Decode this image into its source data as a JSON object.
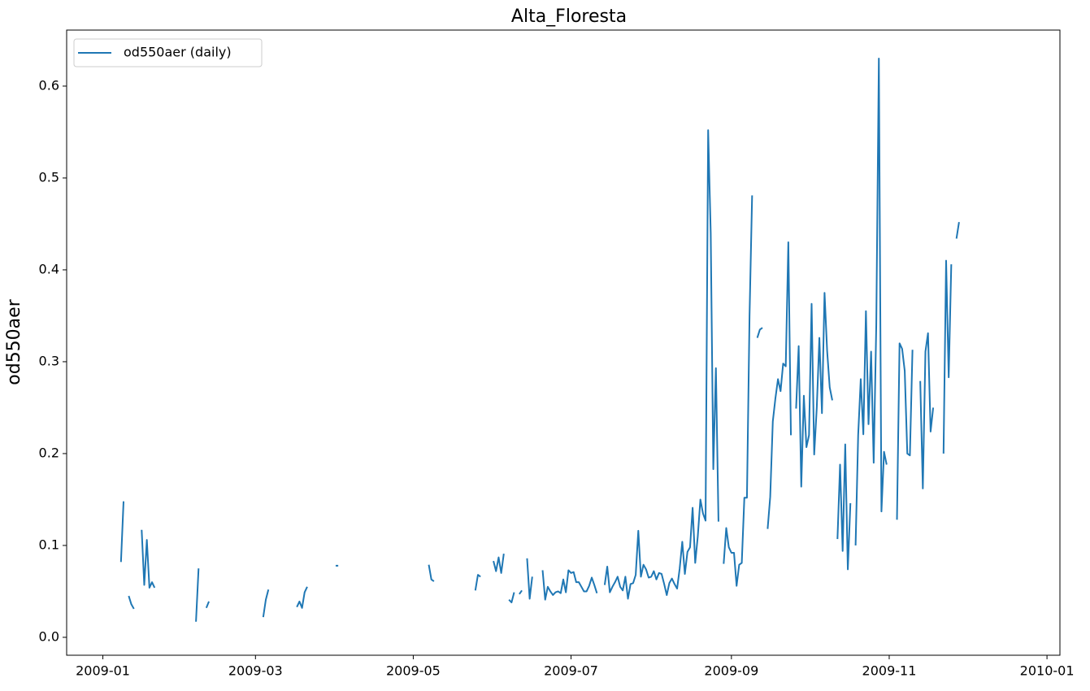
{
  "chart_data": {
    "type": "line",
    "title": "Alta_Floresta",
    "y_label": "od550aer",
    "x": [
      0,
      1,
      2,
      3,
      4,
      5,
      6,
      7,
      8,
      9,
      10,
      11,
      12,
      13,
      14,
      15,
      16,
      17,
      18,
      19,
      20,
      21,
      22,
      23,
      24,
      25,
      26,
      27,
      28,
      29,
      30,
      31,
      32,
      33,
      34,
      35,
      36,
      37,
      38,
      39,
      40,
      41,
      42,
      43,
      44,
      45,
      46,
      47,
      48,
      49,
      50,
      51,
      52,
      53,
      54,
      55,
      56,
      57,
      58,
      59,
      60,
      61,
      62,
      63,
      64,
      65,
      66,
      67,
      68,
      69,
      70,
      71,
      72,
      73,
      74,
      75,
      76,
      77,
      78,
      79,
      80,
      81,
      82,
      83,
      84,
      85,
      86,
      87,
      88,
      89,
      90,
      91,
      92,
      93,
      94,
      95,
      96,
      97,
      98,
      99,
      100,
      101,
      102,
      103,
      104,
      105,
      106,
      107,
      108,
      109,
      110,
      111,
      112,
      113,
      114,
      115,
      116,
      117,
      118,
      119,
      120,
      121,
      122,
      123,
      124,
      125,
      126,
      127,
      128,
      129,
      130,
      131,
      132,
      133,
      134,
      135,
      136,
      137,
      138,
      139,
      140,
      141,
      142,
      143,
      144,
      145,
      146,
      147,
      148,
      149,
      150,
      151,
      152,
      153,
      154,
      155,
      156,
      157,
      158,
      159,
      160,
      161,
      162,
      163,
      164,
      165,
      166,
      167,
      168,
      169,
      170,
      171,
      172,
      173,
      174,
      175,
      176,
      177,
      178,
      179,
      180,
      181,
      182,
      183,
      184,
      185,
      186,
      187,
      188,
      189,
      190,
      191,
      192,
      193,
      194,
      195,
      196,
      197,
      198,
      199,
      200,
      201,
      202,
      203,
      204,
      205,
      206,
      207,
      208,
      209,
      210,
      211,
      212,
      213,
      214,
      215,
      216,
      217,
      218,
      219,
      220,
      221,
      222,
      223,
      224,
      225,
      226,
      227,
      228,
      229,
      230,
      231,
      232,
      233,
      234,
      235,
      236,
      237,
      238,
      239,
      240,
      241,
      242,
      243,
      244,
      245,
      246,
      247,
      248,
      249,
      250,
      251,
      252,
      253,
      254,
      255,
      256,
      257,
      258,
      259,
      260,
      261,
      262,
      263,
      264,
      265,
      266,
      267,
      268,
      269,
      270,
      271,
      272,
      273,
      274,
      275,
      276,
      277,
      278,
      279,
      280,
      281,
      282,
      283,
      284,
      285,
      286,
      287,
      288,
      289,
      290,
      291,
      292,
      293,
      294,
      295,
      296,
      297,
      298,
      299,
      300,
      301,
      302,
      303,
      304,
      305,
      306,
      307,
      308,
      309,
      310,
      311,
      312,
      313,
      314,
      315,
      316,
      317,
      318,
      319,
      320,
      321,
      322,
      323,
      324,
      325,
      326,
      327,
      328,
      329,
      330,
      331
    ],
    "series": [
      {
        "name": "od550aer (daily)",
        "color": "#1f77b4",
        "values": [
          null,
          null,
          null,
          null,
          null,
          null,
          null,
          0.082,
          0.148,
          null,
          0.045,
          0.036,
          0.031,
          null,
          null,
          0.117,
          0.057,
          0.106,
          0.054,
          0.06,
          0.054,
          null,
          null,
          null,
          null,
          null,
          null,
          null,
          null,
          null,
          null,
          null,
          null,
          null,
          null,
          null,
          0.017,
          0.075,
          null,
          null,
          0.032,
          0.039,
          null,
          null,
          null,
          null,
          null,
          null,
          null,
          null,
          null,
          null,
          null,
          null,
          null,
          null,
          null,
          null,
          null,
          null,
          null,
          null,
          0.022,
          0.041,
          0.052,
          null,
          null,
          null,
          null,
          null,
          null,
          null,
          null,
          null,
          null,
          0.033,
          0.039,
          0.032,
          0.049,
          0.055,
          null,
          null,
          null,
          null,
          null,
          null,
          null,
          null,
          null,
          null,
          0.078,
          0.078,
          null,
          null,
          null,
          null,
          null,
          null,
          null,
          null,
          null,
          null,
          null,
          null,
          null,
          null,
          null,
          null,
          null,
          null,
          null,
          null,
          null,
          null,
          null,
          null,
          null,
          null,
          null,
          null,
          null,
          null,
          null,
          null,
          null,
          null,
          0.079,
          0.063,
          0.061,
          null,
          null,
          null,
          null,
          null,
          null,
          null,
          null,
          null,
          null,
          null,
          null,
          null,
          null,
          null,
          0.051,
          0.068,
          0.066,
          null,
          null,
          null,
          null,
          0.083,
          0.072,
          0.087,
          0.07,
          0.091,
          null,
          0.041,
          0.038,
          0.049,
          null,
          0.047,
          0.051,
          null,
          0.086,
          0.042,
          0.066,
          null,
          null,
          null,
          0.073,
          0.041,
          0.055,
          0.05,
          0.046,
          0.049,
          0.05,
          0.048,
          0.063,
          0.049,
          0.073,
          0.07,
          0.071,
          0.06,
          0.06,
          0.055,
          0.05,
          0.05,
          0.056,
          0.065,
          0.057,
          0.048,
          null,
          null,
          0.057,
          0.077,
          0.049,
          0.055,
          0.06,
          0.066,
          0.055,
          0.051,
          0.066,
          0.042,
          0.058,
          0.059,
          0.068,
          0.116,
          0.066,
          0.079,
          0.074,
          0.065,
          0.066,
          0.072,
          0.063,
          0.07,
          0.069,
          0.058,
          0.046,
          0.059,
          0.064,
          0.058,
          0.053,
          0.075,
          0.104,
          0.069,
          0.093,
          0.098,
          0.141,
          0.081,
          0.11,
          0.15,
          0.135,
          0.127,
          0.552,
          0.44,
          0.183,
          0.293,
          0.126,
          null,
          0.08,
          0.119,
          0.098,
          0.092,
          0.092,
          0.056,
          0.079,
          0.081,
          0.152,
          0.152,
          0.35,
          0.481,
          null,
          0.326,
          0.335,
          0.337,
          null,
          0.118,
          0.153,
          0.235,
          0.26,
          0.281,
          0.268,
          0.298,
          0.295,
          0.43,
          0.22,
          null,
          0.249,
          0.317,
          0.164,
          0.263,
          0.207,
          0.22,
          0.363,
          0.199,
          0.25,
          0.326,
          0.244,
          0.375,
          0.312,
          0.272,
          0.258,
          null,
          0.107,
          0.188,
          0.094,
          0.21,
          0.074,
          0.146,
          null,
          0.1,
          0.22,
          0.281,
          0.221,
          0.355,
          0.232,
          0.311,
          0.19,
          0.34,
          0.63,
          0.137,
          0.202,
          0.188,
          null,
          null,
          null,
          0.128,
          0.32,
          0.314,
          0.29,
          0.2,
          0.198,
          0.313,
          null,
          null,
          0.279,
          0.162,
          0.311,
          0.331,
          0.224,
          0.25,
          null,
          null,
          null,
          0.2,
          0.41,
          0.283,
          0.406,
          null,
          0.434,
          0.452
        ]
      }
    ],
    "xlim": [
      -14,
      370
    ],
    "xticks": [
      {
        "value": 0,
        "label": "2009-01"
      },
      {
        "value": 59,
        "label": "2009-03"
      },
      {
        "value": 120,
        "label": "2009-05"
      },
      {
        "value": 181,
        "label": "2009-07"
      },
      {
        "value": 243,
        "label": "2009-09"
      },
      {
        "value": 304,
        "label": "2009-11"
      },
      {
        "value": 365,
        "label": "2010-01"
      }
    ],
    "ylim": [
      -0.0195,
      0.661
    ],
    "yticks": [
      {
        "value": 0,
        "label": "0.0"
      },
      0.1,
      0.2,
      0.3,
      0.4,
      0.5,
      0.6
    ],
    "legend": "upper left",
    "grid": false
  }
}
